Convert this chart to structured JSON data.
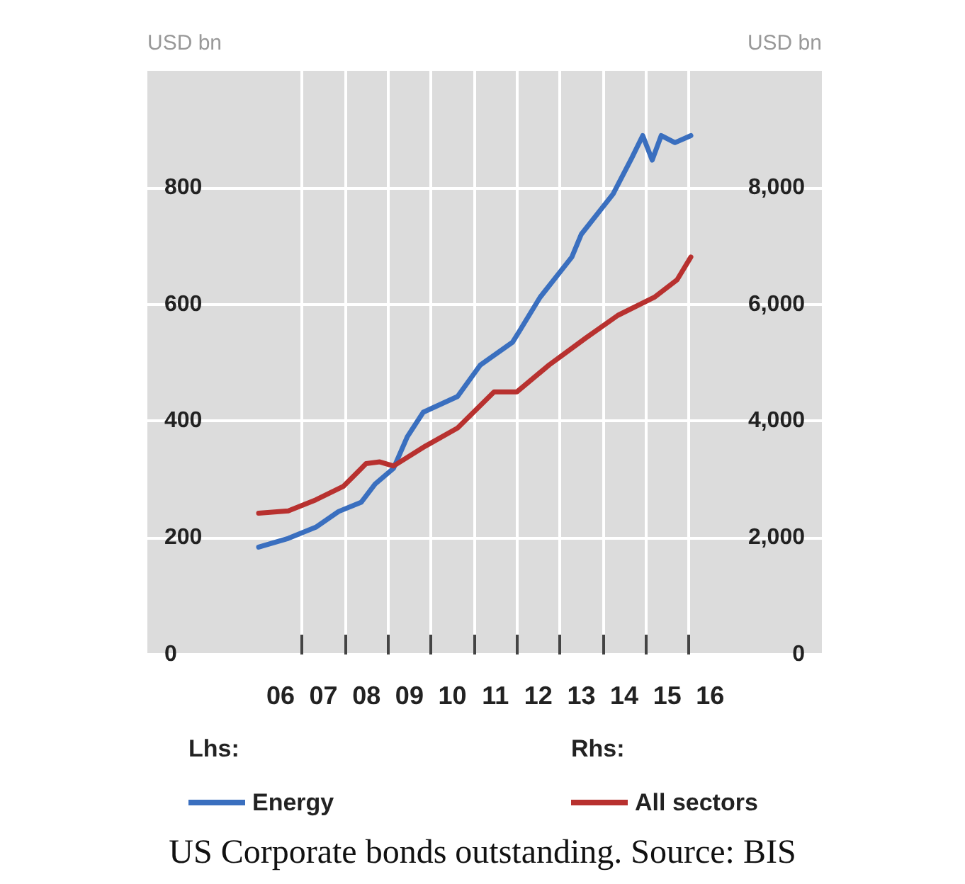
{
  "chart_data": {
    "type": "line",
    "ylabel": "USD bn",
    "y2label": "USD bn",
    "annotations": [
      "Lhs:",
      "Rhs:",
      "US Corporate bonds outstanding. Source: BIS"
    ],
    "xlim": [
      2.9,
      18.6
    ],
    "xticks": [
      {
        "value": 6,
        "label": "06"
      },
      {
        "value": 7,
        "label": "07"
      },
      {
        "value": 8,
        "label": "08"
      },
      {
        "value": 9,
        "label": "09"
      },
      10,
      11,
      12,
      13,
      14,
      15,
      16,
      {
        "value": 6.5,
        "label": null
      },
      {
        "value": 7.5,
        "label": null
      },
      {
        "value": 8.5,
        "label": null
      },
      {
        "value": 9.5,
        "label": null
      },
      {
        "value": 10.5,
        "label": null
      },
      {
        "value": 11.5,
        "label": null
      },
      {
        "value": 12.5,
        "label": null
      },
      {
        "value": 13.5,
        "label": null
      },
      {
        "value": 14.5,
        "label": null
      },
      {
        "value": 15.5,
        "label": null
      }
    ],
    "ylim": [
      0,
      1000
    ],
    "yticks": [
      0,
      200,
      400,
      600,
      800
    ],
    "y2lim": [
      0,
      10000
    ],
    "y2ticks": [
      {
        "value": 0,
        "label": "0"
      },
      {
        "value": 2000,
        "label": "2,000"
      },
      {
        "value": 4000,
        "label": "4,000"
      },
      {
        "value": 6000,
        "label": "6,000"
      },
      {
        "value": 8000,
        "label": "8,000"
      }
    ],
    "grid": true,
    "legend": "bottom",
    "marker": "none",
    "line_style": "solid",
    "series": [
      {
        "name": "Energy",
        "color": "#3a6fbf",
        "x": [
          5.49,
          6.18,
          6.82,
          7.35,
          7.88,
          8.2,
          8.63,
          8.95,
          9.32,
          10.12,
          10.65,
          11.4,
          11.56,
          12.04,
          12.78,
          13.0,
          13.74,
          14.17,
          14.43,
          14.65,
          14.86,
          15.18,
          15.55
        ],
        "values": [
          184,
          199,
          218,
          245,
          261,
          292,
          319,
          373,
          415,
          442,
          496,
          535,
          554,
          612,
          681,
          720,
          789,
          850,
          889,
          847,
          889,
          877,
          889
        ]
      },
      {
        "name": "All sectors",
        "color": "#b8312f",
        "axis": "y2",
        "x": [
          5.49,
          6.18,
          6.82,
          7.46,
          7.99,
          8.31,
          8.63,
          9.37,
          10.12,
          10.97,
          11.5,
          12.25,
          13.1,
          13.85,
          14.7,
          15.23,
          15.55
        ],
        "values": [
          2420,
          2460,
          2650,
          2880,
          3270,
          3300,
          3230,
          3570,
          3880,
          4500,
          4500,
          4960,
          5420,
          5810,
          6120,
          6420,
          6810
        ]
      }
    ]
  }
}
